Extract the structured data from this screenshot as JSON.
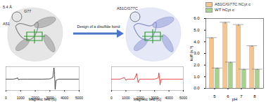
{
  "chart_data": [
    {
      "type": "line",
      "x_label": "Magnetic field (G)",
      "color": "#222222",
      "x": [
        0,
        500,
        700,
        800,
        850,
        950,
        1500,
        2500,
        3000,
        3200,
        3280,
        3320,
        3360,
        3420,
        3600,
        5000
      ],
      "values": [
        0,
        0,
        0.05,
        0.12,
        -0.05,
        0,
        0,
        0,
        0.02,
        0.15,
        1.0,
        0.4,
        -0.9,
        -0.1,
        0,
        0
      ],
      "xlim": [
        0,
        5000
      ],
      "xticks": [
        0,
        1000,
        2000,
        3000,
        4000,
        5000
      ],
      "ylim": [
        -1,
        1.1
      ],
      "tick_labels": "x"
    },
    {
      "type": "line",
      "x_label": "Magnetic field (G)",
      "color": "#e0201b",
      "x": [
        0,
        600,
        900,
        1000,
        1100,
        1600,
        1750,
        1850,
        1950,
        3000,
        3250,
        3300,
        3340,
        3380,
        3450,
        5000
      ],
      "values": [
        0,
        0,
        0.15,
        -0.1,
        0,
        0,
        0.5,
        -0.3,
        0,
        0,
        0.1,
        0.55,
        0.1,
        -0.5,
        0,
        0
      ],
      "xlim": [
        0,
        5000
      ],
      "xticks": [
        0,
        1000,
        2000,
        3000,
        4000,
        5000
      ],
      "ylim": [
        -1,
        1.1
      ],
      "tick_labels": "x"
    },
    {
      "type": "bar",
      "x_label": "pH",
      "y_label": "koff (s⁻¹)",
      "legend": "top",
      "categories": [
        "5",
        "6",
        "7",
        "8"
      ],
      "series": [
        {
          "name": "A51C/G77C hCyt c",
          "color": "#f7c48b",
          "values": [
            4.3,
            5.6,
            5.4,
            3.6
          ],
          "errors": [
            0.06,
            0.08,
            0.08,
            0.06
          ]
        },
        {
          "name": "WT hCyt c",
          "color": "#a9d18e",
          "values": [
            1.7,
            2.2,
            1.6,
            1.6
          ],
          "errors": [
            0.05,
            0.06,
            0.05,
            0.05
          ]
        }
      ],
      "ylim": [
        0,
        6
      ],
      "yticks": [
        0,
        1,
        2,
        3,
        4,
        5,
        6
      ]
    }
  ],
  "diagram": {
    "labels": [
      "5.4 Å",
      "G77",
      "A51"
    ],
    "arrow_label": "Design of a disulfide bond",
    "mutant_label": "A51C/G77C"
  }
}
